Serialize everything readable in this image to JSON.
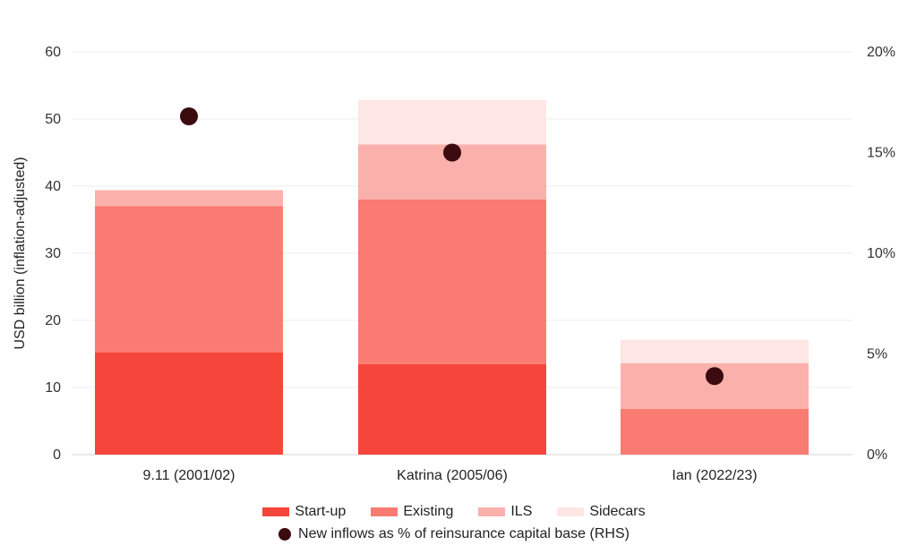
{
  "chart_data": {
    "type": "bar",
    "stacked": true,
    "categories": [
      "9.11 (2001/02)",
      "Katrina (2005/06)",
      "Ian (2022/23)"
    ],
    "series": [
      {
        "name": "Start-up",
        "color": "#f6453b",
        "values": [
          15.2,
          13.5,
          0
        ]
      },
      {
        "name": "Existing",
        "color": "#f97b72",
        "values": [
          21.8,
          24.5,
          6.8
        ]
      },
      {
        "name": "ILS",
        "color": "#fbb1ab",
        "values": [
          2.4,
          8.2,
          6.8
        ]
      },
      {
        "name": "Sidecars",
        "color": "#fde6e3",
        "values": [
          0,
          6.6,
          3.5
        ]
      }
    ],
    "overlay_series": {
      "name": "New inflows as % of reinsurance capital base (RHS)",
      "type": "scatter",
      "color": "#3b0b10",
      "axis": "right",
      "values": [
        16.8,
        15.0,
        3.9
      ]
    },
    "ylabel": "USD billion (inflation-adjusted)",
    "ylim": [
      0,
      60
    ],
    "yticks": [
      "0",
      "10",
      "20",
      "30",
      "40",
      "50",
      "60"
    ],
    "y2lim": [
      0,
      20
    ],
    "y2ticks": [
      "0%",
      "5%",
      "10%",
      "15%",
      "20%"
    ],
    "grid": true,
    "legend_position": "bottom"
  }
}
